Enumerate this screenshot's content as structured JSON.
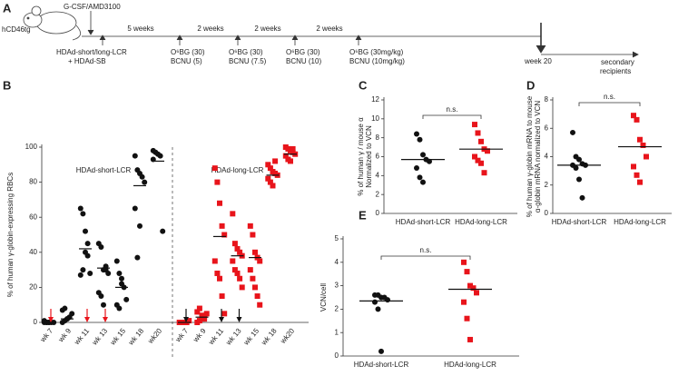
{
  "panel_a": {
    "panel": "A",
    "mouse": "hCD46tg",
    "mobilization": "G-CSF/AMD3100",
    "vectors": [
      "HDAd-short/long-LCR",
      "+ HDAd-SB"
    ],
    "intervals": [
      "5 weeks",
      "2 weeks",
      "2 weeks",
      "2 weeks"
    ],
    "treatments": [
      [
        "O⁶BG (30)",
        "BCNU (5)"
      ],
      [
        "O⁶BG (30)",
        "BCNU (7.5)"
      ],
      [
        "O⁶BG (30)",
        "BCNU (10)"
      ],
      [
        "O⁶BG (30mg/kg)",
        "BCNU (10mg/kg)"
      ]
    ],
    "endpoint": "week 20",
    "transplant": [
      "secondary",
      "recipients"
    ]
  },
  "chart_data": [
    {
      "type": "grouped-dot",
      "panel": "B",
      "ylabel": [
        "% of  human γ-globin-expressing RBCs"
      ],
      "categories": [
        "wk 7",
        "wk 9",
        "wk 11",
        "wk 13",
        "wk 15",
        "wk 18",
        "wk20"
      ],
      "ylim": [
        0,
        100
      ],
      "yticks": [
        0,
        20,
        40,
        60,
        80,
        100
      ],
      "series": [
        {
          "name": "HDAd-short-LCR",
          "color": "#111111",
          "marker": "circle",
          "values": [
            [
              0,
              0,
              0,
              0,
              0,
              1,
              0,
              0
            ],
            [
              0,
              1,
              2,
              3,
              5,
              7,
              8,
              2
            ],
            [
              65,
              62,
              52,
              45,
              28,
              27,
              30,
              40,
              38
            ],
            [
              45,
              43,
              30,
              30,
              28,
              17,
              15,
              10,
              32
            ],
            [
              35,
              28,
              22,
              20,
              13,
              10,
              8,
              25
            ],
            [
              95,
              87,
              85,
              83,
              80,
              65,
              37,
              55
            ],
            [
              98,
              97,
              96,
              95,
              52,
              93
            ]
          ],
          "medians": [
            0,
            2,
            42,
            31,
            20,
            78,
            92
          ]
        },
        {
          "name": "HDAd-long-LCR",
          "color": "#e8141b",
          "marker": "square",
          "values": [
            [
              0,
              0,
              0,
              0,
              1,
              0,
              0,
              0,
              0
            ],
            [
              0,
              1,
              2,
              3,
              5,
              6,
              8,
              4,
              2
            ],
            [
              88,
              80,
              68,
              55,
              50,
              35,
              28,
              25,
              15,
              5
            ],
            [
              62,
              45,
              42,
              40,
              38,
              35,
              30,
              28,
              25,
              20
            ],
            [
              55,
              50,
              40,
              37,
              35,
              30,
              25,
              20,
              15,
              10
            ],
            [
              90,
              88,
              86,
              85,
              84,
              82,
              80,
              78,
              92
            ],
            [
              100,
              99,
              98,
              97,
              96,
              95,
              93,
              92,
              99
            ]
          ],
          "medians": [
            0,
            3,
            49,
            38,
            37,
            84,
            96
          ]
        }
      ]
    },
    {
      "type": "dot",
      "panel": "C",
      "ylabel": [
        "% of human γ / mouse α",
        "Normalized to VCN"
      ],
      "ylim": [
        0,
        12
      ],
      "yticks": [
        0,
        2,
        4,
        6,
        8,
        10,
        12
      ],
      "annotation": "n.s.",
      "groups": [
        {
          "name": "HDAd-short-LCR",
          "color": "#111111",
          "marker": "circle",
          "values": [
            8.4,
            7.8,
            6.2,
            5.7,
            5.5,
            4.8,
            3.8,
            3.3
          ],
          "median": 5.7
        },
        {
          "name": "HDAd-long-LCR",
          "color": "#e8141b",
          "marker": "square",
          "values": [
            9.4,
            8.5,
            7.6,
            6.8,
            6.6,
            6.0,
            5.6,
            5.3,
            4.3
          ],
          "median": 6.8
        }
      ]
    },
    {
      "type": "dot",
      "panel": "D",
      "ylabel": [
        "% of human γ-globin mRNA to mouse",
        "α-globin mRNA normalized to VCN"
      ],
      "ylim": [
        0,
        8
      ],
      "yticks": [
        0,
        2,
        4,
        6,
        8
      ],
      "annotation": "n.s.",
      "groups": [
        {
          "name": "HDAd-short-LCR",
          "color": "#111111",
          "marker": "circle",
          "values": [
            5.7,
            4.0,
            3.8,
            3.5,
            3.4,
            3.4,
            3.2,
            2.4,
            1.1
          ],
          "median": 3.4
        },
        {
          "name": "HDAd-long-LCR",
          "color": "#e8141b",
          "marker": "square",
          "values": [
            6.9,
            6.6,
            5.2,
            4.8,
            4.0,
            3.3,
            2.7,
            2.2
          ],
          "median": 4.7
        }
      ]
    },
    {
      "type": "dot",
      "panel": "E",
      "ylabel": [
        "VCN/cell"
      ],
      "ylim": [
        0,
        5
      ],
      "yticks": [
        0,
        1,
        2,
        3,
        4,
        5
      ],
      "annotation": "n.s.",
      "groups": [
        {
          "name": "HDAd-short-LCR",
          "color": "#111111",
          "marker": "circle",
          "values": [
            2.6,
            2.6,
            2.5,
            2.5,
            2.4,
            2.3,
            2.0,
            0.2
          ],
          "median": 2.35
        },
        {
          "name": "HDAd-long-LCR",
          "color": "#e8141b",
          "marker": "square",
          "values": [
            4.0,
            3.6,
            3.0,
            2.9,
            2.7,
            2.3,
            1.6,
            0.7
          ],
          "median": 2.85
        }
      ]
    }
  ]
}
